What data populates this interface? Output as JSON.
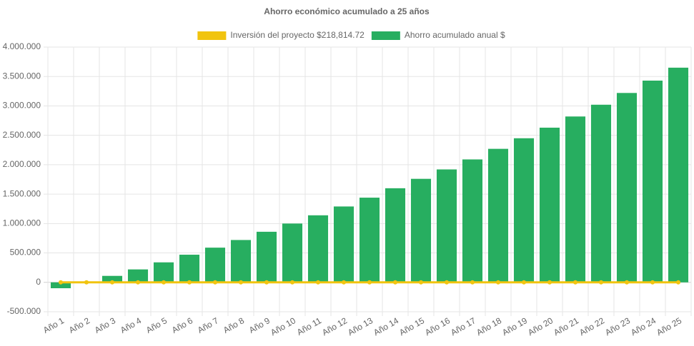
{
  "chart_data": {
    "type": "bar",
    "title": "Ahorro económico acumulado a 25 años",
    "categories": [
      "Año 1",
      "Año 2",
      "Año 3",
      "Año 4",
      "Año 5",
      "Año 6",
      "Año 7",
      "Año 8",
      "Año 9",
      "Año 10",
      "Año 11",
      "Año 12",
      "Año 13",
      "Año 14",
      "Año 15",
      "Año 16",
      "Año 17",
      "Año 18",
      "Año 19",
      "Año 20",
      "Año 21",
      "Año 22",
      "Año 23",
      "Año 24",
      "Año 25"
    ],
    "series": [
      {
        "name": "Inversión del proyecto $218,814.72",
        "type": "line",
        "color": "#f1c40f",
        "values": [
          0,
          0,
          0,
          0,
          0,
          0,
          0,
          0,
          0,
          0,
          0,
          0,
          0,
          0,
          0,
          0,
          0,
          0,
          0,
          0,
          0,
          0,
          0,
          0,
          0
        ]
      },
      {
        "name": "Ahorro acumulado anual $",
        "type": "bar",
        "color": "#27ae60",
        "values": [
          -100000,
          0,
          110000,
          220000,
          340000,
          470000,
          590000,
          720000,
          860000,
          1000000,
          1140000,
          1290000,
          1440000,
          1600000,
          1760000,
          1920000,
          2090000,
          2270000,
          2450000,
          2630000,
          2820000,
          3020000,
          3220000,
          3430000,
          3650000
        ]
      }
    ],
    "ylim": [
      -500000,
      4000000
    ],
    "yticks": [
      {
        "value": -500000,
        "label": "-500.000"
      },
      0,
      {
        "value": 500000,
        "label": "500.000"
      },
      {
        "value": 1000000,
        "label": "1.000.000"
      },
      {
        "value": 1500000,
        "label": "1.500.000"
      },
      {
        "value": 2000000,
        "label": "2.000.000"
      },
      {
        "value": 2500000,
        "label": "2.500.000"
      },
      {
        "value": 3000000,
        "label": "3.000.000"
      },
      {
        "value": 3500000,
        "label": "3.500.000"
      },
      {
        "value": 4000000,
        "label": "4.000.000"
      }
    ],
    "grid": true,
    "legend": "top"
  }
}
